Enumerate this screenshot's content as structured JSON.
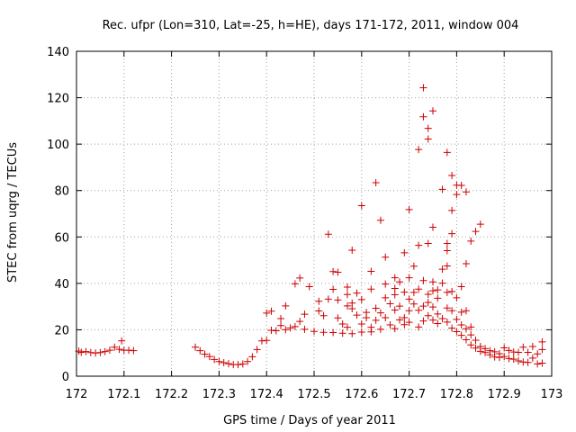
{
  "chart_data": {
    "type": "scatter",
    "title": "Rec. ufpr (Lon=310, Lat=-25, h=HE), days 171-172, 2011, window 004",
    "xlabel": "GPS time / Days of year 2011",
    "ylabel": "STEC from uqrg / TECUs",
    "xlim": [
      172,
      173
    ],
    "ylim": [
      0,
      140
    ],
    "grid": true,
    "marker": "+",
    "color": "#cc0000",
    "xticks": [
      172,
      172.1,
      172.2,
      172.3,
      172.4,
      172.5,
      172.6,
      172.7,
      172.8,
      172.9,
      173
    ],
    "xtick_labels": [
      "172",
      "172.1",
      "172.2",
      "172.3",
      "172.4",
      "172.5",
      "172.6",
      "172.7",
      "172.8",
      "172.9",
      "173"
    ],
    "yticks": [
      0,
      20,
      40,
      60,
      80,
      100,
      120,
      140
    ],
    "ytick_labels": [
      "0",
      "20",
      "40",
      "60",
      "80",
      "100",
      "120",
      "140"
    ],
    "points": [
      [
        172.005,
        10.8
      ],
      [
        172.01,
        10.3
      ],
      [
        172.02,
        10.6
      ],
      [
        172.03,
        10.2
      ],
      [
        172.04,
        10.0
      ],
      [
        172.05,
        10.2
      ],
      [
        172.06,
        10.6
      ],
      [
        172.07,
        11.2
      ],
      [
        172.08,
        12.5
      ],
      [
        172.09,
        11.6
      ],
      [
        172.095,
        15.2
      ],
      [
        172.1,
        11.2
      ],
      [
        172.11,
        11.2
      ],
      [
        172.12,
        11.0
      ],
      [
        172.25,
        12.5
      ],
      [
        172.26,
        11.0
      ],
      [
        172.27,
        9.5
      ],
      [
        172.28,
        8.5
      ],
      [
        172.29,
        7.2
      ],
      [
        172.3,
        6.3
      ],
      [
        172.31,
        5.8
      ],
      [
        172.32,
        5.4
      ],
      [
        172.33,
        5.0
      ],
      [
        172.34,
        5.0
      ],
      [
        172.35,
        5.3
      ],
      [
        172.36,
        6.3
      ],
      [
        172.37,
        8.4
      ],
      [
        172.38,
        11.5
      ],
      [
        172.39,
        15.2
      ],
      [
        172.4,
        15.4
      ],
      [
        172.4,
        27.2
      ],
      [
        172.41,
        28.0
      ],
      [
        172.41,
        19.8
      ],
      [
        172.42,
        19.6
      ],
      [
        172.43,
        21.8
      ],
      [
        172.43,
        24.8
      ],
      [
        172.44,
        20.0
      ],
      [
        172.44,
        30.3
      ],
      [
        172.45,
        20.8
      ],
      [
        172.46,
        39.8
      ],
      [
        172.46,
        21.4
      ],
      [
        172.47,
        42.3
      ],
      [
        172.47,
        23.6
      ],
      [
        172.48,
        20.2
      ],
      [
        172.48,
        26.7
      ],
      [
        172.49,
        38.6
      ],
      [
        172.5,
        19.3
      ],
      [
        172.51,
        28.1
      ],
      [
        172.51,
        32.3
      ],
      [
        172.52,
        26.1
      ],
      [
        172.52,
        18.9
      ],
      [
        172.53,
        61.2
      ],
      [
        172.53,
        33.2
      ],
      [
        172.54,
        45.1
      ],
      [
        172.54,
        37.4
      ],
      [
        172.54,
        18.8
      ],
      [
        172.55,
        44.8
      ],
      [
        172.55,
        32.8
      ],
      [
        172.55,
        25.1
      ],
      [
        172.56,
        22.5
      ],
      [
        172.56,
        18.5
      ],
      [
        172.57,
        38.4
      ],
      [
        172.57,
        35.2
      ],
      [
        172.57,
        30.3
      ],
      [
        172.57,
        21.1
      ],
      [
        172.58,
        54.3
      ],
      [
        172.58,
        31.5
      ],
      [
        172.58,
        29.1
      ],
      [
        172.58,
        18.3
      ],
      [
        172.59,
        35.8
      ],
      [
        172.59,
        26.3
      ],
      [
        172.6,
        73.5
      ],
      [
        172.6,
        33.0
      ],
      [
        172.6,
        22.5
      ],
      [
        172.6,
        19.0
      ],
      [
        172.61,
        27.5
      ],
      [
        172.61,
        25.2
      ],
      [
        172.62,
        45.2
      ],
      [
        172.62,
        37.5
      ],
      [
        172.62,
        21.1
      ],
      [
        172.62,
        19.1
      ],
      [
        172.63,
        83.4
      ],
      [
        172.63,
        29.3
      ],
      [
        172.63,
        24.1
      ],
      [
        172.64,
        67.2
      ],
      [
        172.64,
        27.3
      ],
      [
        172.64,
        20.2
      ],
      [
        172.65,
        51.3
      ],
      [
        172.65,
        39.7
      ],
      [
        172.65,
        33.8
      ],
      [
        172.65,
        25.2
      ],
      [
        172.66,
        31.2
      ],
      [
        172.66,
        22.1
      ],
      [
        172.67,
        42.4
      ],
      [
        172.67,
        37.8
      ],
      [
        172.67,
        35.1
      ],
      [
        172.67,
        28.5
      ],
      [
        172.67,
        20.5
      ],
      [
        172.68,
        40.6
      ],
      [
        172.68,
        30.2
      ],
      [
        172.68,
        24.3
      ],
      [
        172.69,
        53.2
      ],
      [
        172.69,
        36.2
      ],
      [
        172.69,
        25.2
      ],
      [
        172.69,
        22.2
      ],
      [
        172.7,
        71.8
      ],
      [
        172.7,
        42.4
      ],
      [
        172.7,
        33.2
      ],
      [
        172.7,
        28.2
      ],
      [
        172.7,
        23.2
      ],
      [
        172.71,
        47.4
      ],
      [
        172.71,
        36.1
      ],
      [
        172.71,
        31.1
      ],
      [
        172.72,
        97.7
      ],
      [
        172.72,
        56.4
      ],
      [
        172.72,
        37.5
      ],
      [
        172.72,
        28.4
      ],
      [
        172.72,
        21.2
      ],
      [
        172.73,
        124.3
      ],
      [
        172.73,
        111.8
      ],
      [
        172.73,
        41.2
      ],
      [
        172.73,
        30.2
      ],
      [
        172.73,
        23.8
      ],
      [
        172.74,
        106.8
      ],
      [
        172.74,
        102.2
      ],
      [
        172.74,
        57.2
      ],
      [
        172.74,
        35.3
      ],
      [
        172.74,
        31.8
      ],
      [
        172.74,
        26.1
      ],
      [
        172.75,
        114.3
      ],
      [
        172.75,
        64.2
      ],
      [
        172.75,
        40.6
      ],
      [
        172.75,
        36.8
      ],
      [
        172.75,
        29.8
      ],
      [
        172.75,
        24.2
      ],
      [
        172.76,
        37.2
      ],
      [
        172.76,
        33.6
      ],
      [
        172.76,
        26.8
      ],
      [
        172.76,
        22.7
      ],
      [
        172.77,
        80.5
      ],
      [
        172.77,
        46.1
      ],
      [
        172.77,
        40.1
      ],
      [
        172.77,
        24.8
      ],
      [
        172.78,
        96.4
      ],
      [
        172.78,
        57.2
      ],
      [
        172.78,
        54.1
      ],
      [
        172.78,
        47.5
      ],
      [
        172.78,
        36.1
      ],
      [
        172.78,
        29.4
      ],
      [
        172.78,
        23.3
      ],
      [
        172.79,
        86.5
      ],
      [
        172.79,
        71.4
      ],
      [
        172.79,
        61.4
      ],
      [
        172.79,
        36.5
      ],
      [
        172.79,
        28.2
      ],
      [
        172.79,
        20.7
      ],
      [
        172.8,
        82.3
      ],
      [
        172.8,
        78.3
      ],
      [
        172.8,
        33.8
      ],
      [
        172.8,
        24.5
      ],
      [
        172.8,
        19.2
      ],
      [
        172.81,
        82.2
      ],
      [
        172.81,
        38.6
      ],
      [
        172.81,
        27.6
      ],
      [
        172.81,
        22.1
      ],
      [
        172.81,
        17.6
      ],
      [
        172.82,
        79.4
      ],
      [
        172.82,
        48.5
      ],
      [
        172.82,
        28.2
      ],
      [
        172.82,
        20.4
      ],
      [
        172.82,
        15.7
      ],
      [
        172.83,
        58.2
      ],
      [
        172.83,
        21.2
      ],
      [
        172.83,
        17.8
      ],
      [
        172.83,
        13.5
      ],
      [
        172.84,
        62.4
      ],
      [
        172.84,
        15.5
      ],
      [
        172.84,
        12.1
      ],
      [
        172.85,
        65.5
      ],
      [
        172.85,
        12.8
      ],
      [
        172.85,
        10.7
      ],
      [
        172.86,
        11.9
      ],
      [
        172.86,
        10.2
      ],
      [
        172.87,
        11.0
      ],
      [
        172.87,
        9.2
      ],
      [
        172.88,
        10.5
      ],
      [
        172.88,
        8.3
      ],
      [
        172.89,
        9.7
      ],
      [
        172.89,
        8.1
      ],
      [
        172.9,
        12.2
      ],
      [
        172.9,
        8.5
      ],
      [
        172.91,
        11.1
      ],
      [
        172.91,
        7.6
      ],
      [
        172.92,
        10.4
      ],
      [
        172.92,
        7.3
      ],
      [
        172.93,
        10.3
      ],
      [
        172.93,
        6.6
      ],
      [
        172.94,
        12.5
      ],
      [
        172.94,
        6.1
      ],
      [
        172.95,
        10.3
      ],
      [
        172.95,
        5.9
      ],
      [
        172.96,
        12.8
      ],
      [
        172.96,
        7.8
      ],
      [
        172.97,
        9.6
      ],
      [
        172.97,
        5.3
      ],
      [
        172.98,
        14.8
      ],
      [
        172.98,
        11.5
      ],
      [
        172.98,
        5.6
      ]
    ]
  }
}
